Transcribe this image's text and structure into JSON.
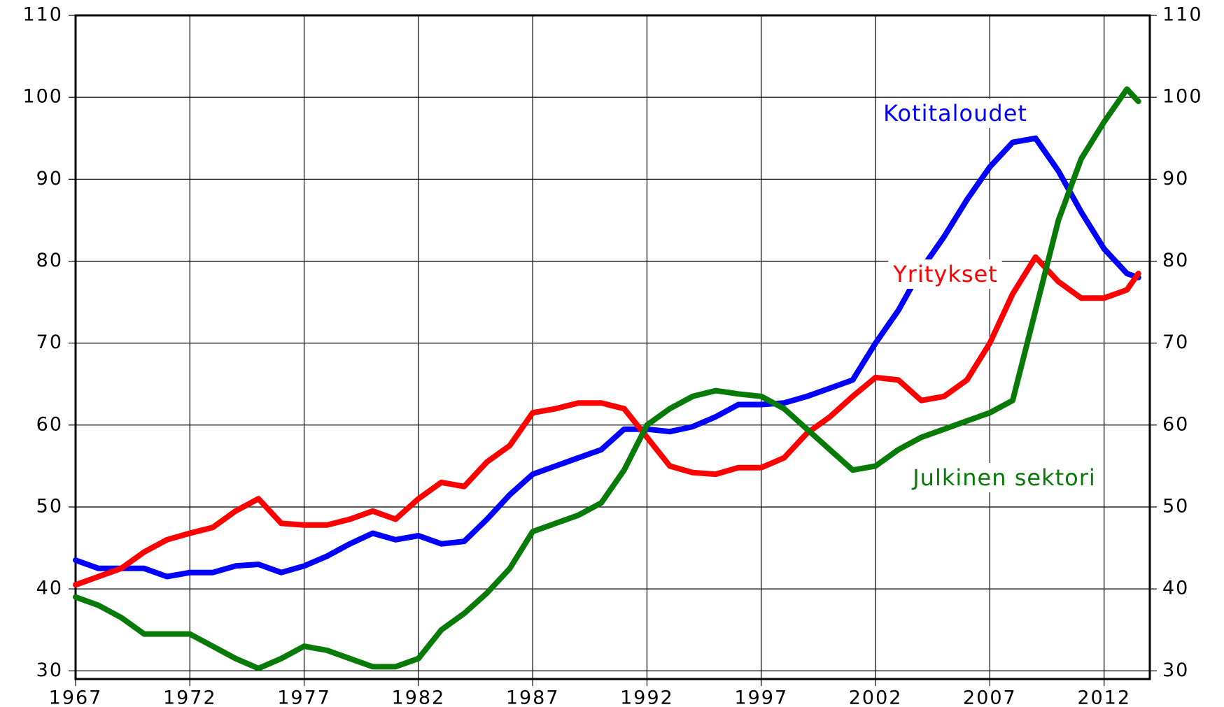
{
  "chart_data": {
    "type": "line",
    "x": [
      1967,
      1968,
      1969,
      1970,
      1971,
      1972,
      1973,
      1974,
      1975,
      1976,
      1977,
      1978,
      1979,
      1980,
      1981,
      1982,
      1983,
      1984,
      1985,
      1986,
      1987,
      1988,
      1989,
      1990,
      1991,
      1992,
      1993,
      1994,
      1995,
      1996,
      1997,
      1998,
      1999,
      2000,
      2001,
      2002,
      2003,
      2004,
      2005,
      2006,
      2007,
      2008,
      2009,
      2010,
      2011,
      2012,
      2013,
      2013.5
    ],
    "series": [
      {
        "name": "Kotitaloudet",
        "color": "#0000ff",
        "values": [
          43.5,
          42.5,
          42.5,
          42.5,
          41.5,
          42,
          42,
          42.8,
          43,
          42,
          42.8,
          44,
          45.5,
          46.8,
          46,
          46.5,
          45.5,
          45.8,
          48.5,
          51.5,
          54,
          55,
          56,
          57,
          59.5,
          59.5,
          59.2,
          59.8,
          61,
          62.5,
          62.5,
          62.7,
          63.5,
          64.5,
          65.5,
          70,
          74,
          79,
          83,
          87.5,
          91.5,
          94.5,
          95,
          91,
          86,
          81.5,
          78.5,
          78
        ]
      },
      {
        "name": "Yritykset",
        "color": "#ff0000",
        "values": [
          40.5,
          41.5,
          42.5,
          44.5,
          46,
          46.8,
          47.5,
          49.5,
          51,
          48,
          47.8,
          47.8,
          48.5,
          49.5,
          48.5,
          51,
          53,
          52.5,
          55.5,
          57.5,
          61.5,
          62,
          62.7,
          62.7,
          62,
          58.5,
          55,
          54.2,
          54,
          54.8,
          54.8,
          56,
          59,
          61,
          63.5,
          65.8,
          65.5,
          63,
          63.5,
          65.5,
          70,
          76,
          80.5,
          77.5,
          75.5,
          75.5,
          76.5,
          78.5
        ]
      },
      {
        "name": "Julkinen sektori",
        "color": "#087a08",
        "values": [
          39,
          38,
          36.5,
          34.5,
          34.5,
          34.5,
          33,
          31.5,
          30.3,
          31.5,
          33,
          32.5,
          31.5,
          30.5,
          30.5,
          31.5,
          35,
          37,
          39.5,
          42.5,
          47,
          48,
          49,
          50.5,
          54.5,
          60,
          62,
          63.5,
          64.2,
          63.8,
          63.5,
          62,
          59.5,
          57,
          54.5,
          55,
          57,
          58.5,
          59.5,
          60.5,
          61.5,
          63,
          74,
          85,
          92.5,
          97,
          101,
          99.5
        ]
      }
    ],
    "xlim": [
      1967,
      2014
    ],
    "xticks": [
      1967,
      1972,
      1977,
      1982,
      1987,
      1992,
      1997,
      2002,
      2007,
      2012
    ],
    "ylim": [
      29,
      110
    ],
    "yticks": [
      30,
      40,
      50,
      60,
      70,
      80,
      90,
      100,
      110
    ],
    "y2lim": [
      29,
      110
    ],
    "y2ticks": [
      30,
      40,
      50,
      60,
      70,
      80,
      90,
      100,
      110
    ],
    "grid": true
  }
}
